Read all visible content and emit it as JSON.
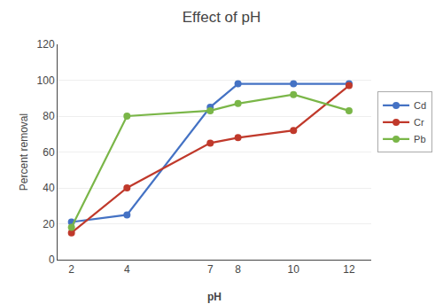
{
  "chart_data": {
    "type": "line",
    "title": "Effect of pH",
    "xlabel": "pH",
    "ylabel": "Percent removal",
    "x": [
      2,
      4,
      7,
      8,
      10,
      12
    ],
    "series": [
      {
        "name": "Cd",
        "color": "#4472C4",
        "values": [
          21,
          25,
          85,
          98,
          98,
          98
        ]
      },
      {
        "name": "Cr",
        "color": "#C0392B",
        "values": [
          15,
          40,
          65,
          68,
          72,
          97
        ]
      },
      {
        "name": "Pb",
        "color": "#7AB648",
        "values": [
          18,
          80,
          83,
          87,
          92,
          83
        ]
      }
    ],
    "xlim": [
      1.5,
      12.8
    ],
    "xticks": [
      2,
      4,
      7,
      8,
      10,
      12
    ],
    "ylim": [
      0,
      120
    ],
    "yticks": [
      0,
      20,
      40,
      60,
      80,
      100,
      120
    ],
    "grid": true,
    "legend": "right",
    "marker": "circle"
  }
}
